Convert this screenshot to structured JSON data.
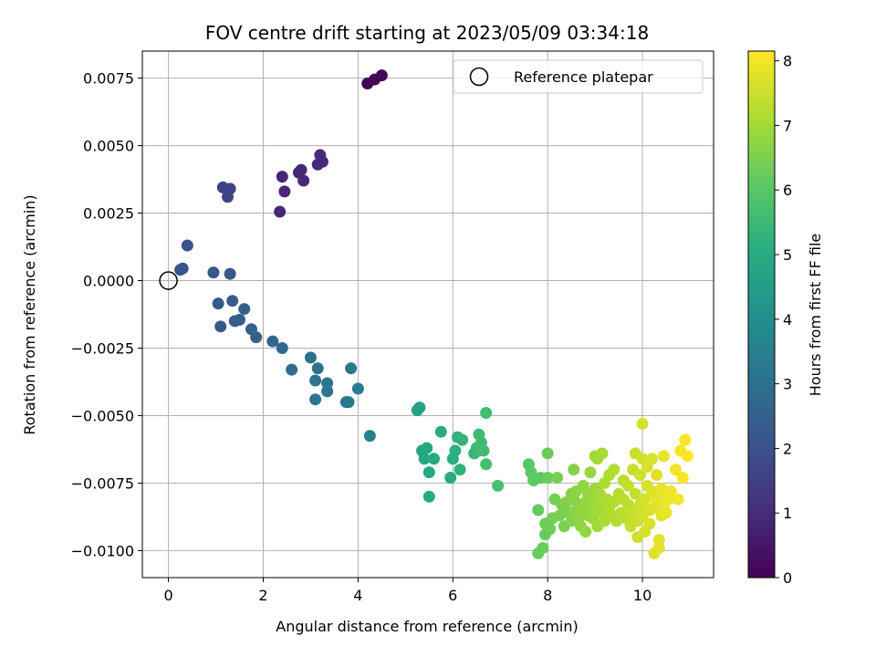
{
  "chart_data": {
    "type": "scatter",
    "title": "FOV centre drift starting at 2023/05/09 03:34:18",
    "xlabel": "Angular distance from reference (arcmin)",
    "ylabel": "Rotation from reference (arcmin)",
    "xlim": [
      -0.55,
      11.5
    ],
    "ylim": [
      -0.011,
      0.0085
    ],
    "x_ticks": [
      0,
      2,
      4,
      6,
      8,
      10
    ],
    "x_tick_labels": [
      "0",
      "2",
      "4",
      "6",
      "8",
      "10"
    ],
    "y_ticks": [
      -0.01,
      -0.0075,
      -0.005,
      -0.0025,
      0.0,
      0.0025,
      0.005,
      0.0075
    ],
    "y_tick_labels": [
      "−0.0100",
      "−0.0075",
      "−0.0050",
      "−0.0025",
      "0.0000",
      "0.0025",
      "0.0050",
      "0.0075"
    ],
    "grid": true,
    "legend": {
      "entries": [
        "Reference platepar"
      ],
      "placement": "upper right"
    },
    "reference_point": {
      "name": "Reference platepar",
      "x": 0,
      "y": 0,
      "marker": "hollow-circle"
    },
    "colorbar": {
      "label": "Hours from first FF file",
      "colormap": "viridis",
      "min": 0,
      "max": 8.15,
      "ticks": [
        0,
        1,
        2,
        3,
        4,
        5,
        6,
        7,
        8
      ],
      "tick_labels": [
        "0",
        "1",
        "2",
        "3",
        "4",
        "5",
        "6",
        "7",
        "8"
      ]
    },
    "points": [
      [
        4.2,
        0.0073,
        0.0
      ],
      [
        4.35,
        0.00745,
        0.08
      ],
      [
        4.5,
        0.0076,
        0.15
      ],
      [
        3.2,
        0.00465,
        1.0
      ],
      [
        3.15,
        0.0043,
        0.95
      ],
      [
        3.25,
        0.0044,
        0.98
      ],
      [
        2.8,
        0.0041,
        0.9
      ],
      [
        2.75,
        0.004,
        0.92
      ],
      [
        2.85,
        0.0037,
        0.95
      ],
      [
        2.4,
        0.00385,
        0.85
      ],
      [
        2.45,
        0.0033,
        0.88
      ],
      [
        2.35,
        0.00255,
        0.9
      ],
      [
        1.15,
        0.00345,
        1.6
      ],
      [
        1.3,
        0.0034,
        1.62
      ],
      [
        1.25,
        0.0031,
        1.65
      ],
      [
        0.4,
        0.0013,
        2.0
      ],
      [
        0.3,
        0.00045,
        2.1
      ],
      [
        0.25,
        0.0004,
        2.12
      ],
      [
        0.95,
        0.0003,
        2.15
      ],
      [
        1.3,
        0.00025,
        2.2
      ],
      [
        1.05,
        -0.00085,
        2.3
      ],
      [
        1.35,
        -0.00075,
        2.35
      ],
      [
        1.1,
        -0.0017,
        2.3
      ],
      [
        1.4,
        -0.0015,
        2.4
      ],
      [
        1.5,
        -0.00145,
        2.42
      ],
      [
        1.6,
        -0.00105,
        2.45
      ],
      [
        1.75,
        -0.0018,
        2.5
      ],
      [
        1.85,
        -0.0021,
        2.55
      ],
      [
        2.2,
        -0.00225,
        2.7
      ],
      [
        2.4,
        -0.0025,
        2.75
      ],
      [
        2.6,
        -0.0033,
        2.85
      ],
      [
        3.0,
        -0.00285,
        3.0
      ],
      [
        3.15,
        -0.00325,
        3.05
      ],
      [
        3.1,
        -0.0037,
        3.1
      ],
      [
        3.1,
        -0.0044,
        3.15
      ],
      [
        3.35,
        -0.0038,
        3.2
      ],
      [
        3.35,
        -0.0041,
        3.22
      ],
      [
        3.75,
        -0.0045,
        3.3
      ],
      [
        3.8,
        -0.0045,
        3.32
      ],
      [
        3.85,
        -0.00325,
        3.35
      ],
      [
        4.0,
        -0.004,
        3.4
      ],
      [
        4.25,
        -0.00575,
        3.5
      ],
      [
        5.25,
        -0.0048,
        4.6
      ],
      [
        5.3,
        -0.0047,
        4.65
      ],
      [
        5.35,
        -0.0063,
        4.8
      ],
      [
        5.4,
        -0.0066,
        4.85
      ],
      [
        5.45,
        -0.0062,
        4.82
      ],
      [
        5.5,
        -0.0071,
        4.9
      ],
      [
        5.5,
        -0.008,
        4.95
      ],
      [
        5.6,
        -0.0066,
        4.9
      ],
      [
        5.75,
        -0.0056,
        5.0
      ],
      [
        5.95,
        -0.0073,
        5.05
      ],
      [
        6.0,
        -0.0066,
        5.1
      ],
      [
        6.05,
        -0.0063,
        5.15
      ],
      [
        6.1,
        -0.0058,
        5.2
      ],
      [
        6.15,
        -0.007,
        5.25
      ],
      [
        6.2,
        -0.0059,
        5.3
      ],
      [
        6.45,
        -0.0064,
        5.4
      ],
      [
        6.5,
        -0.0062,
        5.45
      ],
      [
        6.55,
        -0.0063,
        5.5
      ],
      [
        6.55,
        -0.0057,
        5.55
      ],
      [
        6.6,
        -0.006,
        5.5
      ],
      [
        6.65,
        -0.0063,
        5.6
      ],
      [
        6.7,
        -0.0068,
        5.65
      ],
      [
        6.7,
        -0.0049,
        5.6
      ],
      [
        6.95,
        -0.0076,
        5.7
      ],
      [
        7.6,
        -0.0068,
        6.0
      ],
      [
        7.65,
        -0.0071,
        6.05
      ],
      [
        7.7,
        -0.0074,
        6.1
      ],
      [
        7.8,
        -0.0085,
        6.15
      ],
      [
        7.85,
        -0.0073,
        6.1
      ],
      [
        7.8,
        -0.0101,
        6.2
      ],
      [
        7.9,
        -0.0099,
        6.25
      ],
      [
        7.95,
        -0.0094,
        6.2
      ],
      [
        7.95,
        -0.009,
        6.3
      ],
      [
        8.0,
        -0.0073,
        6.25
      ],
      [
        8.0,
        -0.0064,
        6.3
      ],
      [
        8.05,
        -0.0092,
        6.35
      ],
      [
        8.1,
        -0.0088,
        6.4
      ],
      [
        8.15,
        -0.0081,
        6.4
      ],
      [
        8.2,
        -0.0073,
        6.45
      ],
      [
        8.25,
        -0.0087,
        6.45
      ],
      [
        8.3,
        -0.0083,
        6.5
      ],
      [
        8.35,
        -0.0091,
        6.5
      ],
      [
        8.4,
        -0.0082,
        6.55
      ],
      [
        8.45,
        -0.0086,
        6.55
      ],
      [
        8.5,
        -0.0079,
        6.6
      ],
      [
        8.5,
        -0.0089,
        6.6
      ],
      [
        8.55,
        -0.0081,
        6.65
      ],
      [
        8.55,
        -0.007,
        6.62
      ],
      [
        8.6,
        -0.0085,
        6.65
      ],
      [
        8.6,
        -0.0078,
        6.7
      ],
      [
        8.65,
        -0.0088,
        6.7
      ],
      [
        8.7,
        -0.0083,
        6.72
      ],
      [
        8.7,
        -0.0091,
        6.75
      ],
      [
        8.75,
        -0.0076,
        6.75
      ],
      [
        8.75,
        -0.0085,
        6.78
      ],
      [
        8.8,
        -0.0082,
        6.8
      ],
      [
        8.8,
        -0.0093,
        6.8
      ],
      [
        8.85,
        -0.0087,
        6.82
      ],
      [
        8.85,
        -0.0079,
        6.85
      ],
      [
        8.9,
        -0.0084,
        6.85
      ],
      [
        8.9,
        -0.0071,
        6.88
      ],
      [
        8.95,
        -0.0081,
        6.9
      ],
      [
        8.95,
        -0.0088,
        6.9
      ],
      [
        9.0,
        -0.0065,
        6.95
      ],
      [
        9.0,
        -0.0077,
        6.92
      ],
      [
        9.0,
        -0.0085,
        6.95
      ],
      [
        9.05,
        -0.0091,
        6.98
      ],
      [
        9.05,
        -0.0066,
        7.0
      ],
      [
        9.1,
        -0.0083,
        7.0
      ],
      [
        9.1,
        -0.0079,
        7.02
      ],
      [
        9.15,
        -0.0064,
        7.05
      ],
      [
        9.15,
        -0.0086,
        7.05
      ],
      [
        9.2,
        -0.0075,
        7.08
      ],
      [
        9.2,
        -0.0089,
        7.1
      ],
      [
        9.25,
        -0.0081,
        7.1
      ],
      [
        9.3,
        -0.0084,
        7.15
      ],
      [
        9.3,
        -0.0072,
        7.15
      ],
      [
        9.35,
        -0.0087,
        7.2
      ],
      [
        9.4,
        -0.007,
        7.2
      ],
      [
        9.4,
        -0.0082,
        7.22
      ],
      [
        9.45,
        -0.0089,
        7.25
      ],
      [
        9.5,
        -0.0079,
        7.25
      ],
      [
        9.55,
        -0.0086,
        7.3
      ],
      [
        9.6,
        -0.0081,
        7.3
      ],
      [
        9.6,
        -0.0074,
        7.32
      ],
      [
        9.65,
        -0.0088,
        7.35
      ],
      [
        9.7,
        -0.0083,
        7.35
      ],
      [
        9.7,
        -0.0076,
        7.38
      ],
      [
        9.75,
        -0.0091,
        7.4
      ],
      [
        9.8,
        -0.0086,
        7.4
      ],
      [
        9.8,
        -0.007,
        7.42
      ],
      [
        9.85,
        -0.0064,
        7.45
      ],
      [
        9.85,
        -0.0079,
        7.45
      ],
      [
        9.9,
        -0.0089,
        7.5
      ],
      [
        9.9,
        -0.0095,
        7.5
      ],
      [
        9.95,
        -0.0083,
        7.52
      ],
      [
        9.95,
        -0.0072,
        7.55
      ],
      [
        10.0,
        -0.0066,
        7.55
      ],
      [
        10.0,
        -0.0087,
        7.58
      ],
      [
        10.0,
        -0.0053,
        7.6
      ],
      [
        10.05,
        -0.0081,
        7.6
      ],
      [
        10.05,
        -0.0093,
        7.62
      ],
      [
        10.1,
        -0.0076,
        7.65
      ],
      [
        10.1,
        -0.0069,
        7.65
      ],
      [
        10.15,
        -0.0085,
        7.68
      ],
      [
        10.15,
        -0.009,
        7.7
      ],
      [
        10.2,
        -0.0078,
        7.7
      ],
      [
        10.2,
        -0.0066,
        7.72
      ],
      [
        10.25,
        -0.0084,
        7.75
      ],
      [
        10.25,
        -0.0101,
        7.75
      ],
      [
        10.3,
        -0.0081,
        7.78
      ],
      [
        10.3,
        -0.0072,
        7.8
      ],
      [
        10.35,
        -0.0096,
        7.8
      ],
      [
        10.35,
        -0.0099,
        7.82
      ],
      [
        10.4,
        -0.0087,
        7.85
      ],
      [
        10.4,
        -0.0077,
        7.85
      ],
      [
        10.45,
        -0.0083,
        7.88
      ],
      [
        10.45,
        -0.0065,
        7.9
      ],
      [
        10.5,
        -0.0079,
        7.9
      ],
      [
        10.5,
        -0.0086,
        7.92
      ],
      [
        10.55,
        -0.0081,
        7.95
      ],
      [
        10.6,
        -0.0078,
        7.95
      ],
      [
        10.7,
        -0.007,
        8.0
      ],
      [
        10.75,
        -0.0081,
        8.0
      ],
      [
        10.8,
        -0.0063,
        8.05
      ],
      [
        10.85,
        -0.0073,
        8.05
      ],
      [
        10.9,
        -0.0059,
        8.1
      ],
      [
        10.95,
        -0.0065,
        8.1
      ]
    ]
  }
}
